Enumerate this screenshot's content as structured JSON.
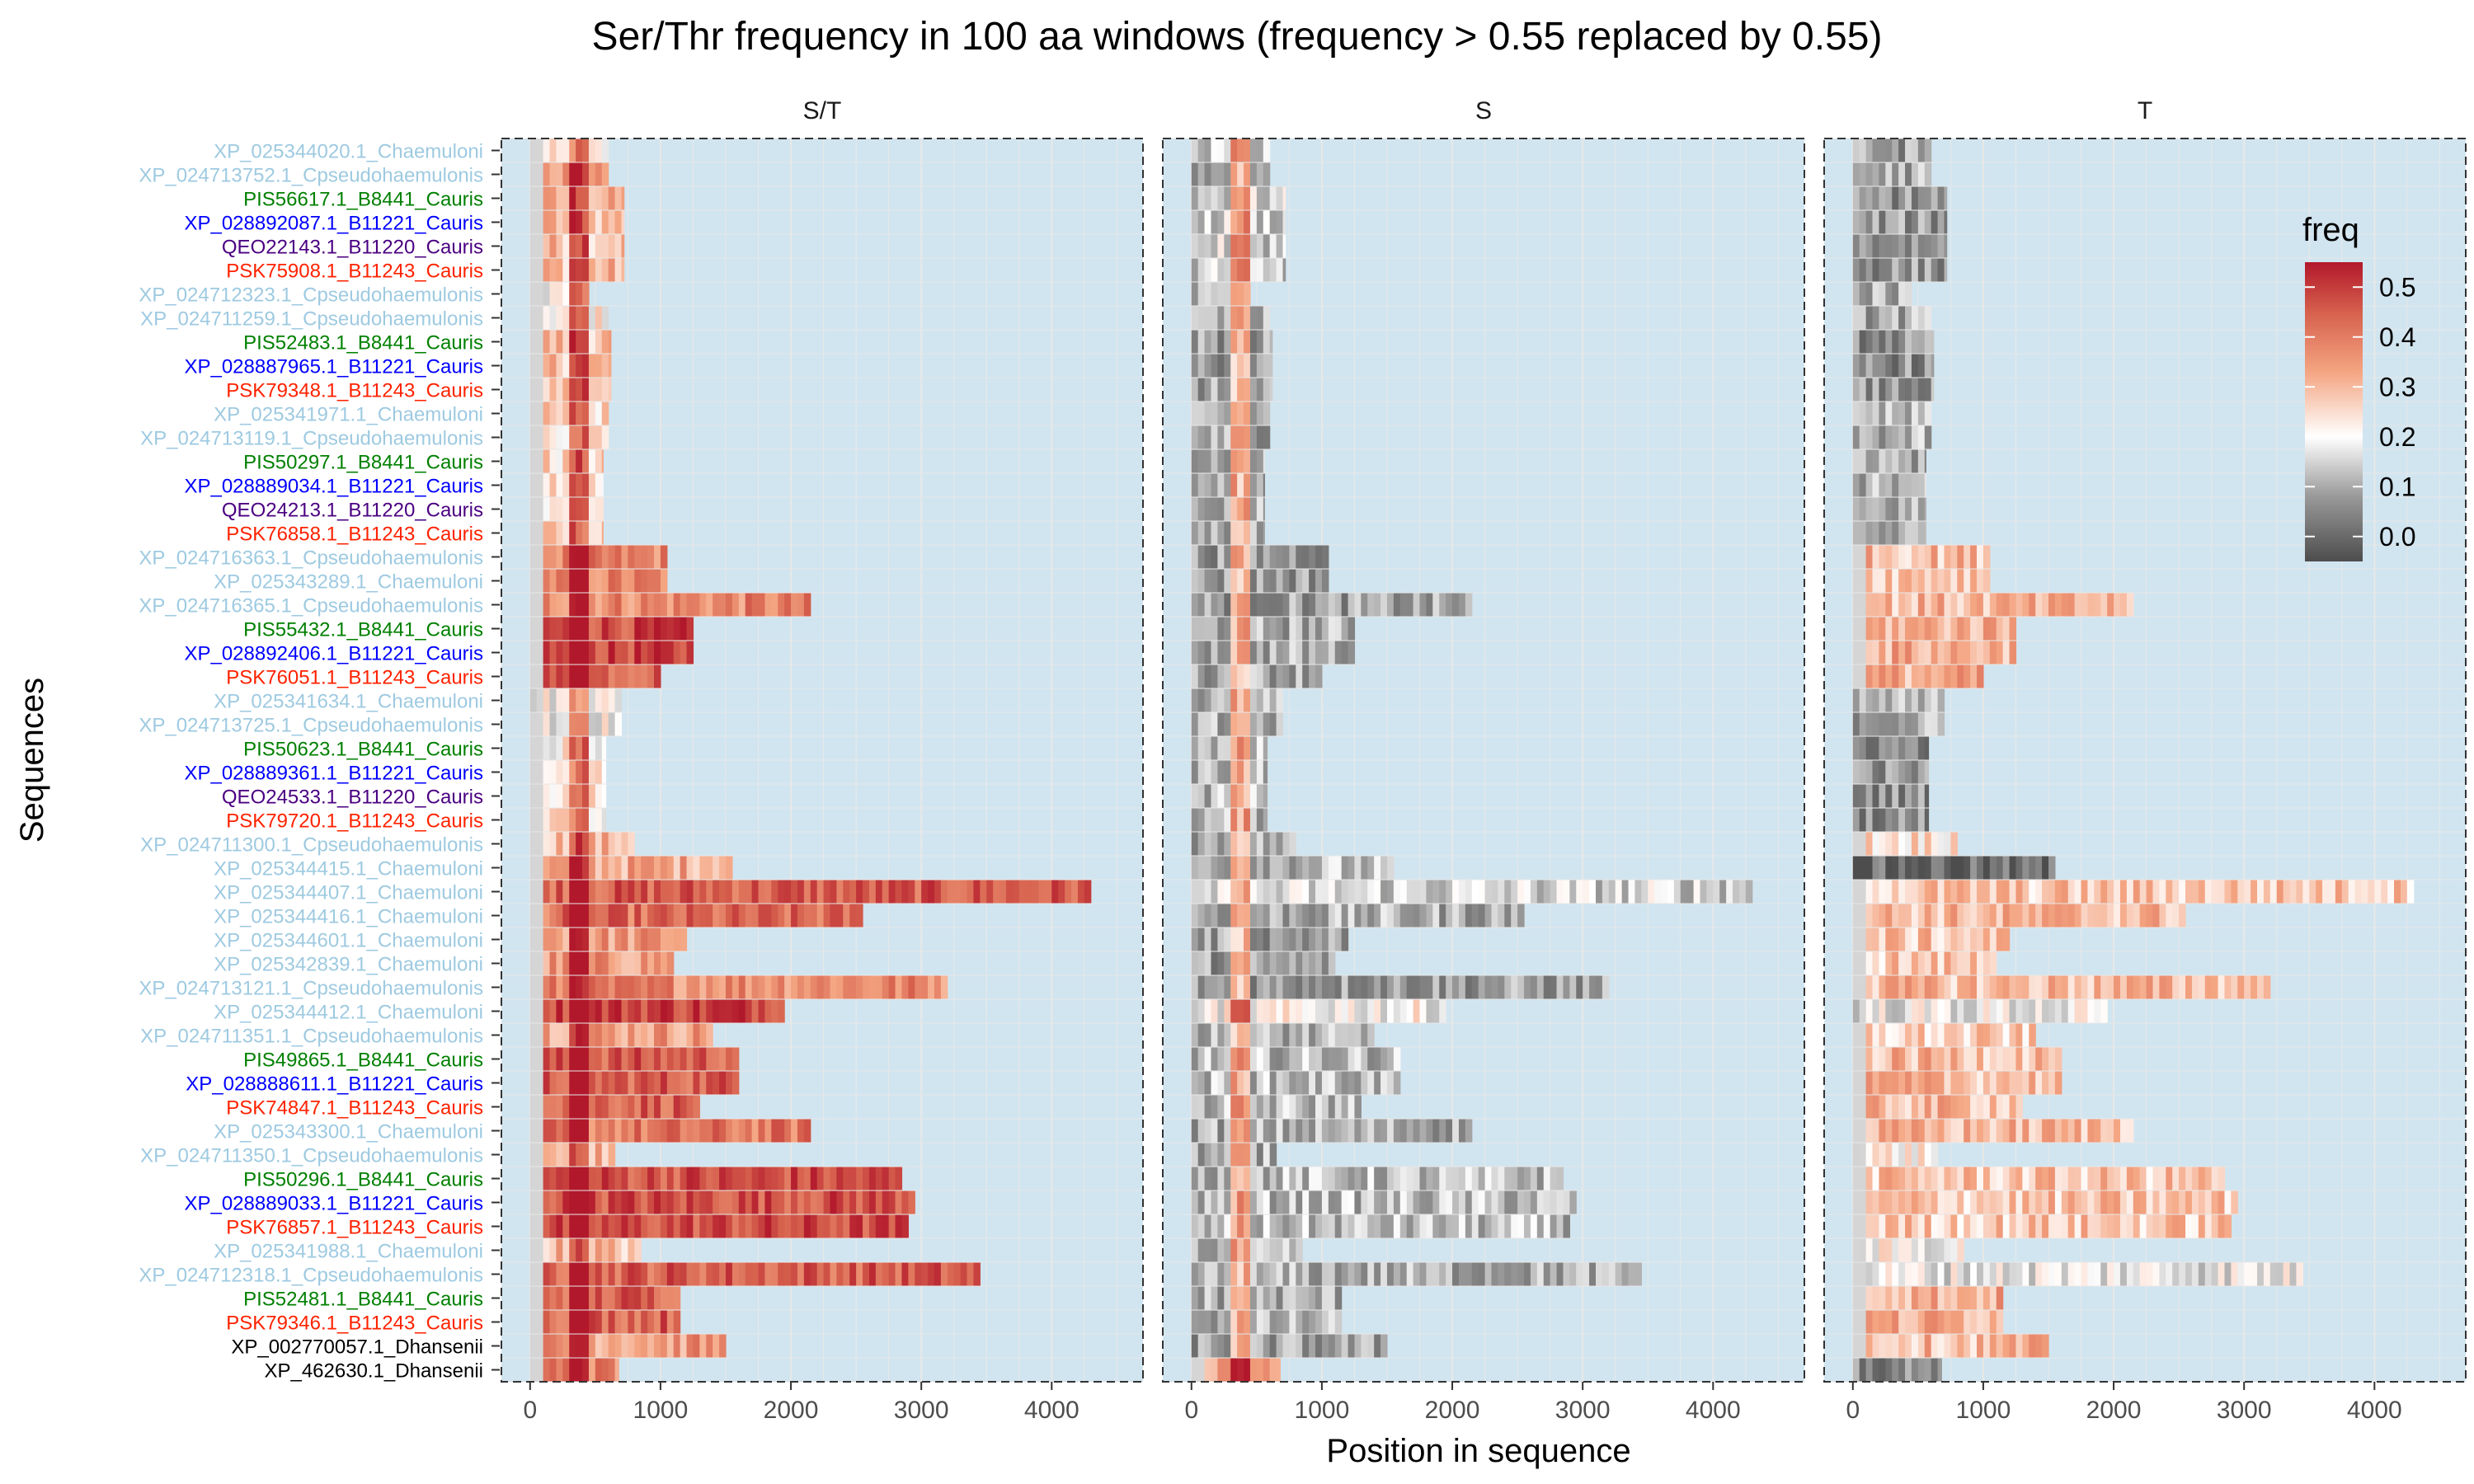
{
  "chart_data": {
    "type": "heatmap",
    "title": "Ser/Thr frequency in 100 aa windows (frequency > 0.55 replaced by 0.55)",
    "xlabel": "Position in sequence",
    "ylabel": "Sequences",
    "facets": [
      "S/T",
      "S",
      "T"
    ],
    "xlim": [
      -220,
      4700
    ],
    "x_ticks": [
      0,
      1000,
      2000,
      3000,
      4000
    ],
    "x_tick_labels": [
      "0",
      "1000",
      "2000",
      "3000",
      "4000"
    ],
    "legend": {
      "title": "freq",
      "placement": "right",
      "ticks": [
        0.0,
        0.1,
        0.2,
        0.3,
        0.4,
        0.5
      ],
      "tick_labels": [
        "0.0",
        "0.1",
        "0.2",
        "0.3",
        "0.4",
        "0.5"
      ],
      "range": [
        -0.05,
        0.55
      ],
      "colors": [
        {
          "value": -0.05,
          "color": "#4d4d4d"
        },
        {
          "value": 0.08,
          "color": "#999999"
        },
        {
          "value": 0.2,
          "color": "#ffffff"
        },
        {
          "value": 0.33,
          "color": "#f4a582"
        },
        {
          "value": 0.45,
          "color": "#d6604d"
        },
        {
          "value": 0.55,
          "color": "#b2182b"
        }
      ]
    },
    "panel_background": "#d1e5f0",
    "gridlines": true,
    "species_colors": {
      "Chaemuloni": "#9ecae1",
      "Cpseudohaemulonis": "#9ecae1",
      "B8441": "#008000",
      "B11221": "#0000ff",
      "B11220": "#4b0082",
      "B11243": "#ff2200",
      "Dhansenii": "#000000"
    },
    "sequences": [
      {
        "name": "XP_025344020.1_Chaemuloni",
        "group": "Chaemuloni",
        "length": 600,
        "st": 0.2,
        "s": 0.12,
        "t": 0.08
      },
      {
        "name": "XP_024713752.1_Cpseudohaemulonis",
        "group": "Cpseudohaemulonis",
        "length": 600,
        "st": 0.35,
        "s": 0.1,
        "t": 0.1
      },
      {
        "name": "PIS56617.1_B8441_Cauris",
        "group": "B8441",
        "length": 720,
        "st": 0.3,
        "s": 0.15,
        "t": 0.07
      },
      {
        "name": "XP_028892087.1_B11221_Cauris",
        "group": "B11221",
        "length": 720,
        "st": 0.3,
        "s": 0.15,
        "t": 0.07
      },
      {
        "name": "QEO22143.1_B11220_Cauris",
        "group": "B11220",
        "length": 720,
        "st": 0.3,
        "s": 0.15,
        "t": 0.07
      },
      {
        "name": "PSK75908.1_B11243_Cauris",
        "group": "B11243",
        "length": 720,
        "st": 0.3,
        "s": 0.15,
        "t": 0.07
      },
      {
        "name": "XP_024712323.1_Cpseudohaemulonis",
        "group": "Cpseudohaemulonis",
        "length": 450,
        "st": 0.22,
        "s": 0.12,
        "t": 0.1
      },
      {
        "name": "XP_024711259.1_Cpseudohaemulonis",
        "group": "Cpseudohaemulonis",
        "length": 600,
        "st": 0.22,
        "s": 0.1,
        "t": 0.1
      },
      {
        "name": "PIS52483.1_B8441_Cauris",
        "group": "B8441",
        "length": 620,
        "st": 0.3,
        "s": 0.08,
        "t": 0.06
      },
      {
        "name": "XP_028887965.1_B11221_Cauris",
        "group": "B11221",
        "length": 620,
        "st": 0.3,
        "s": 0.08,
        "t": 0.06
      },
      {
        "name": "PSK79348.1_B11243_Cauris",
        "group": "B11243",
        "length": 620,
        "st": 0.3,
        "s": 0.08,
        "t": 0.06
      },
      {
        "name": "XP_025341971.1_Chaemuloni",
        "group": "Chaemuloni",
        "length": 600,
        "st": 0.25,
        "s": 0.1,
        "t": 0.1
      },
      {
        "name": "XP_024713119.1_Cpseudohaemulonis",
        "group": "Cpseudohaemulonis",
        "length": 600,
        "st": 0.25,
        "s": 0.1,
        "t": 0.1
      },
      {
        "name": "PIS50297.1_B8441_Cauris",
        "group": "B8441",
        "length": 560,
        "st": 0.25,
        "s": 0.1,
        "t": 0.1
      },
      {
        "name": "XP_028889034.1_B11221_Cauris",
        "group": "B11221",
        "length": 560,
        "st": 0.25,
        "s": 0.1,
        "t": 0.1
      },
      {
        "name": "QEO24213.1_B11220_Cauris",
        "group": "B11220",
        "length": 560,
        "st": 0.25,
        "s": 0.1,
        "t": 0.1
      },
      {
        "name": "PSK76858.1_B11243_Cauris",
        "group": "B11243",
        "length": 560,
        "st": 0.25,
        "s": 0.1,
        "t": 0.1
      },
      {
        "name": "XP_024716363.1_Cpseudohaemulonis",
        "group": "Cpseudohaemulonis",
        "length": 1050,
        "st": 0.38,
        "s": 0.08,
        "t": 0.3
      },
      {
        "name": "XP_025343289.1_Chaemuloni",
        "group": "Chaemuloni",
        "length": 1050,
        "st": 0.38,
        "s": 0.08,
        "t": 0.3
      },
      {
        "name": "XP_024716365.1_Cpseudohaemulonis",
        "group": "Cpseudohaemulonis",
        "length": 2150,
        "st": 0.38,
        "s": 0.08,
        "t": 0.3
      },
      {
        "name": "PIS55432.1_B8441_Cauris",
        "group": "B8441",
        "length": 1250,
        "st": 0.48,
        "s": 0.1,
        "t": 0.32
      },
      {
        "name": "XP_028892406.1_B11221_Cauris",
        "group": "B11221",
        "length": 1250,
        "st": 0.48,
        "s": 0.1,
        "t": 0.32
      },
      {
        "name": "PSK76051.1_B11243_Cauris",
        "group": "B11243",
        "length": 1000,
        "st": 0.45,
        "s": 0.1,
        "t": 0.32
      },
      {
        "name": "XP_025341634.1_Chaemuloni",
        "group": "Chaemuloni",
        "length": 700,
        "st": 0.2,
        "s": 0.1,
        "t": 0.1
      },
      {
        "name": "XP_024713725.1_Cpseudohaemulonis",
        "group": "Cpseudohaemulonis",
        "length": 700,
        "st": 0.2,
        "s": 0.1,
        "t": 0.1
      },
      {
        "name": "PIS50623.1_B8441_Cauris",
        "group": "B8441",
        "length": 580,
        "st": 0.22,
        "s": 0.12,
        "t": 0.06
      },
      {
        "name": "XP_028889361.1_B11221_Cauris",
        "group": "B11221",
        "length": 580,
        "st": 0.22,
        "s": 0.12,
        "t": 0.06
      },
      {
        "name": "QEO24533.1_B11220_Cauris",
        "group": "B11220",
        "length": 580,
        "st": 0.22,
        "s": 0.12,
        "t": 0.06
      },
      {
        "name": "PSK79720.1_B11243_Cauris",
        "group": "B11243",
        "length": 580,
        "st": 0.22,
        "s": 0.12,
        "t": 0.06
      },
      {
        "name": "XP_024711300.1_Cpseudohaemulonis",
        "group": "Cpseudohaemulonis",
        "length": 800,
        "st": 0.3,
        "s": 0.1,
        "t": 0.25
      },
      {
        "name": "XP_025344415.1_Chaemuloni",
        "group": "Chaemuloni",
        "length": 1550,
        "st": 0.33,
        "s": 0.12,
        "t": 0.0
      },
      {
        "name": "XP_025344407.1_Chaemuloni",
        "group": "Chaemuloni",
        "length": 4300,
        "st": 0.45,
        "s": 0.15,
        "t": 0.28
      },
      {
        "name": "XP_025344416.1_Chaemuloni",
        "group": "Chaemuloni",
        "length": 2550,
        "st": 0.42,
        "s": 0.1,
        "t": 0.3
      },
      {
        "name": "XP_025344601.1_Chaemuloni",
        "group": "Chaemuloni",
        "length": 1200,
        "st": 0.35,
        "s": 0.08,
        "t": 0.28
      },
      {
        "name": "XP_025342839.1_Chaemuloni",
        "group": "Chaemuloni",
        "length": 1100,
        "st": 0.35,
        "s": 0.08,
        "t": 0.28
      },
      {
        "name": "XP_024713121.1_Cpseudohaemulonis",
        "group": "Cpseudohaemulonis",
        "length": 3200,
        "st": 0.38,
        "s": 0.08,
        "t": 0.3
      },
      {
        "name": "XP_025344412.1_Chaemuloni",
        "group": "Chaemuloni",
        "length": 1950,
        "st": 0.5,
        "s": 0.2,
        "t": 0.18
      },
      {
        "name": "XP_024711351.1_Cpseudohaemulonis",
        "group": "Cpseudohaemulonis",
        "length": 1400,
        "st": 0.35,
        "s": 0.1,
        "t": 0.26
      },
      {
        "name": "PIS49865.1_B8441_Cauris",
        "group": "B8441",
        "length": 1600,
        "st": 0.45,
        "s": 0.12,
        "t": 0.3
      },
      {
        "name": "XP_028888611.1_B11221_Cauris",
        "group": "B11221",
        "length": 1600,
        "st": 0.45,
        "s": 0.12,
        "t": 0.3
      },
      {
        "name": "PSK74847.1_B11243_Cauris",
        "group": "B11243",
        "length": 1300,
        "st": 0.45,
        "s": 0.12,
        "t": 0.3
      },
      {
        "name": "XP_025343300.1_Chaemuloni",
        "group": "Chaemuloni",
        "length": 2150,
        "st": 0.4,
        "s": 0.1,
        "t": 0.3
      },
      {
        "name": "XP_024711350.1_Cpseudohaemulonis",
        "group": "Cpseudohaemulonis",
        "length": 650,
        "st": 0.3,
        "s": 0.1,
        "t": 0.22
      },
      {
        "name": "PIS50296.1_B8441_Cauris",
        "group": "B8441",
        "length": 2850,
        "st": 0.47,
        "s": 0.12,
        "t": 0.28
      },
      {
        "name": "XP_028889033.1_B11221_Cauris",
        "group": "B11221",
        "length": 2950,
        "st": 0.47,
        "s": 0.12,
        "t": 0.28
      },
      {
        "name": "PSK76857.1_B11243_Cauris",
        "group": "B11243",
        "length": 2900,
        "st": 0.47,
        "s": 0.12,
        "t": 0.28
      },
      {
        "name": "XP_025341988.1_Chaemuloni",
        "group": "Chaemuloni",
        "length": 850,
        "st": 0.3,
        "s": 0.1,
        "t": 0.2
      },
      {
        "name": "XP_024712318.1_Cpseudohaemulonis",
        "group": "Cpseudohaemulonis",
        "length": 3450,
        "st": 0.45,
        "s": 0.1,
        "t": 0.18
      },
      {
        "name": "PIS52481.1_B8441_Cauris",
        "group": "B8441",
        "length": 1150,
        "st": 0.45,
        "s": 0.1,
        "t": 0.32
      },
      {
        "name": "PSK79346.1_B11243_Cauris",
        "group": "B11243",
        "length": 1150,
        "st": 0.45,
        "s": 0.1,
        "t": 0.32
      },
      {
        "name": "XP_002770057.1_Dhansenii",
        "group": "Dhansenii",
        "length": 1500,
        "st": 0.35,
        "s": 0.08,
        "t": 0.3
      },
      {
        "name": "XP_462630.1_Dhansenii",
        "group": "Dhansenii",
        "length": 680,
        "st": 0.38,
        "s": 0.35,
        "t": 0.04
      }
    ]
  }
}
